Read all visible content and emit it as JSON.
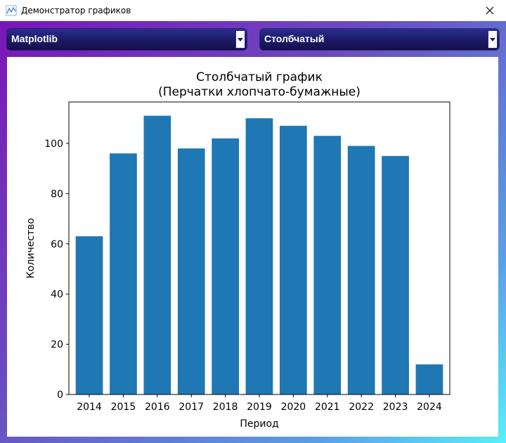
{
  "window": {
    "title": "Демонстратор графиков",
    "app_icon": "chart-line-icon",
    "close_icon": "close-icon"
  },
  "controls": {
    "library_select": {
      "selected": "Matplotlib"
    },
    "chart_type_select": {
      "selected": "Столбчатый"
    }
  },
  "chart_data": {
    "type": "bar",
    "title": "Столбчатый график",
    "subtitle": "(Перчатки хлопчато-бумажные)",
    "xlabel": "Период",
    "ylabel": "Количество",
    "categories": [
      "2014",
      "2015",
      "2016",
      "2017",
      "2018",
      "2019",
      "2020",
      "2021",
      "2022",
      "2023",
      "2024"
    ],
    "values": [
      63,
      96,
      111,
      98,
      102,
      110,
      107,
      103,
      99,
      95,
      12
    ],
    "yticks": [
      0,
      20,
      40,
      60,
      80,
      100
    ],
    "ylim": [
      0,
      116.5
    ],
    "grid": false,
    "bar_color": "#1f77b4"
  }
}
